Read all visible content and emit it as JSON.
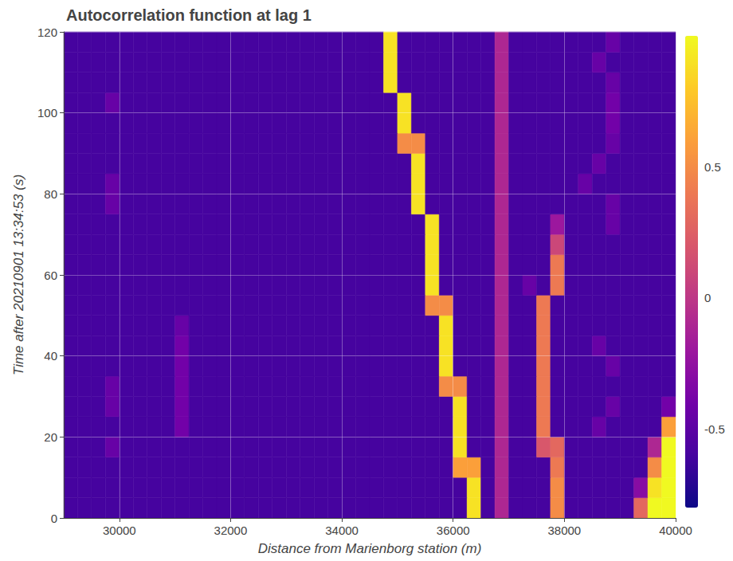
{
  "chart_data": {
    "type": "heatmap",
    "title": "Autocorrelation function at lag 1",
    "x_label": "Distance from Marienborg station (m)",
    "y_label": "Time after 20210901 13:34:53 (s)",
    "xlim": [
      29000,
      40000
    ],
    "xticks": [
      30000,
      32000,
      34000,
      36000,
      38000,
      40000
    ],
    "ylim": [
      0,
      120
    ],
    "yticks": [
      0,
      20,
      40,
      60,
      80,
      100,
      120
    ],
    "grid": true,
    "x_edges": [
      29000,
      29250,
      29500,
      29750,
      30000,
      30250,
      30500,
      30750,
      31000,
      31250,
      31500,
      31750,
      32000,
      32250,
      32500,
      32750,
      33000,
      33250,
      33500,
      33750,
      34000,
      34250,
      34500,
      34750,
      35000,
      35250,
      35500,
      35750,
      36000,
      36250,
      36500,
      36750,
      37000,
      37250,
      37500,
      37750,
      38000,
      38250,
      38500,
      38750,
      39000,
      39250,
      39500,
      39750,
      40000
    ],
    "y_edges": [
      0,
      5,
      10,
      15,
      20,
      25,
      30,
      35,
      40,
      45,
      50,
      55,
      60,
      65,
      70,
      75,
      80,
      85,
      90,
      95,
      100,
      105,
      110,
      115,
      120
    ],
    "values": [
      [
        -0.6,
        -0.6,
        -0.6,
        -0.6,
        -0.6,
        -0.6,
        -0.6,
        -0.6,
        -0.6,
        -0.6,
        -0.6,
        -0.6,
        -0.6,
        -0.6,
        -0.6,
        -0.6,
        -0.6,
        -0.6,
        -0.6,
        -0.6,
        -0.6,
        -0.6,
        -0.6,
        -0.6,
        -0.6,
        -0.6,
        -0.6,
        -0.6,
        -0.6,
        0.9,
        -0.6,
        -0.1,
        -0.6,
        -0.6,
        -0.6,
        0.5,
        -0.6,
        -0.6,
        -0.6,
        -0.6,
        -0.6,
        0.3,
        1,
        1
      ],
      [
        -0.6,
        -0.6,
        -0.6,
        -0.6,
        -0.6,
        -0.6,
        -0.6,
        -0.6,
        -0.6,
        -0.6,
        -0.6,
        -0.6,
        -0.6,
        -0.6,
        -0.6,
        -0.6,
        -0.6,
        -0.6,
        -0.6,
        -0.6,
        -0.6,
        -0.6,
        -0.6,
        -0.6,
        -0.6,
        -0.6,
        -0.6,
        -0.6,
        -0.6,
        0.9,
        -0.6,
        -0.1,
        -0.6,
        -0.6,
        -0.6,
        0.5,
        -0.6,
        -0.6,
        -0.6,
        -0.6,
        -0.6,
        -0.3,
        0.9,
        1
      ],
      [
        -0.6,
        -0.6,
        -0.6,
        -0.6,
        -0.6,
        -0.6,
        -0.6,
        -0.6,
        -0.6,
        -0.6,
        -0.6,
        -0.6,
        -0.6,
        -0.6,
        -0.6,
        -0.6,
        -0.6,
        -0.6,
        -0.6,
        -0.6,
        -0.6,
        -0.6,
        -0.6,
        -0.6,
        -0.6,
        -0.6,
        -0.6,
        -0.6,
        0.6,
        0.6,
        -0.6,
        -0.1,
        -0.6,
        -0.6,
        -0.6,
        0.4,
        -0.6,
        -0.6,
        -0.6,
        -0.6,
        -0.6,
        -0.6,
        0.5,
        1
      ],
      [
        -0.6,
        -0.6,
        -0.6,
        -0.45,
        -0.6,
        -0.6,
        -0.6,
        -0.6,
        -0.6,
        -0.6,
        -0.6,
        -0.6,
        -0.6,
        -0.6,
        -0.6,
        -0.6,
        -0.6,
        -0.6,
        -0.6,
        -0.6,
        -0.6,
        -0.6,
        -0.6,
        -0.6,
        -0.6,
        -0.6,
        -0.6,
        -0.6,
        0.9,
        -0.6,
        -0.6,
        -0.1,
        -0.6,
        -0.6,
        0.2,
        0.3,
        -0.6,
        -0.6,
        -0.6,
        -0.6,
        -0.6,
        -0.6,
        -0.1,
        1
      ],
      [
        -0.6,
        -0.6,
        -0.6,
        -0.6,
        -0.6,
        -0.6,
        -0.6,
        -0.6,
        -0.4,
        -0.6,
        -0.6,
        -0.6,
        -0.6,
        -0.6,
        -0.6,
        -0.6,
        -0.6,
        -0.6,
        -0.6,
        -0.6,
        -0.6,
        -0.6,
        -0.6,
        -0.6,
        -0.6,
        -0.6,
        -0.6,
        -0.6,
        0.9,
        -0.6,
        -0.6,
        -0.1,
        -0.6,
        -0.6,
        0.4,
        -0.6,
        -0.6,
        -0.6,
        -0.45,
        -0.6,
        -0.6,
        -0.6,
        -0.6,
        0.6
      ],
      [
        -0.6,
        -0.6,
        -0.6,
        -0.45,
        -0.6,
        -0.6,
        -0.6,
        -0.6,
        -0.4,
        -0.6,
        -0.6,
        -0.6,
        -0.6,
        -0.6,
        -0.6,
        -0.6,
        -0.6,
        -0.6,
        -0.6,
        -0.6,
        -0.6,
        -0.6,
        -0.6,
        -0.6,
        -0.6,
        -0.6,
        -0.6,
        -0.6,
        0.9,
        -0.6,
        -0.6,
        -0.1,
        -0.6,
        -0.6,
        0.4,
        -0.6,
        -0.6,
        -0.6,
        -0.6,
        -0.45,
        -0.6,
        -0.6,
        -0.6,
        -0.4
      ],
      [
        -0.6,
        -0.6,
        -0.6,
        -0.45,
        -0.6,
        -0.6,
        -0.6,
        -0.6,
        -0.4,
        -0.6,
        -0.6,
        -0.6,
        -0.6,
        -0.6,
        -0.6,
        -0.6,
        -0.6,
        -0.6,
        -0.6,
        -0.6,
        -0.6,
        -0.6,
        -0.6,
        -0.6,
        -0.6,
        -0.6,
        -0.6,
        0.5,
        0.5,
        -0.6,
        -0.6,
        -0.1,
        -0.6,
        -0.6,
        0.4,
        -0.6,
        -0.6,
        -0.6,
        -0.6,
        -0.6,
        -0.6,
        -0.6,
        -0.6,
        -0.6
      ],
      [
        -0.6,
        -0.6,
        -0.6,
        -0.6,
        -0.6,
        -0.6,
        -0.6,
        -0.6,
        -0.4,
        -0.6,
        -0.6,
        -0.6,
        -0.6,
        -0.6,
        -0.6,
        -0.6,
        -0.6,
        -0.6,
        -0.6,
        -0.6,
        -0.6,
        -0.6,
        -0.6,
        -0.6,
        -0.6,
        -0.6,
        -0.6,
        0.9,
        -0.6,
        -0.6,
        -0.6,
        -0.1,
        -0.6,
        -0.6,
        0.4,
        -0.6,
        -0.6,
        -0.6,
        -0.6,
        -0.45,
        -0.6,
        -0.6,
        -0.6,
        -0.6
      ],
      [
        -0.6,
        -0.6,
        -0.6,
        -0.6,
        -0.6,
        -0.6,
        -0.6,
        -0.6,
        -0.4,
        -0.6,
        -0.6,
        -0.6,
        -0.6,
        -0.6,
        -0.6,
        -0.6,
        -0.6,
        -0.6,
        -0.6,
        -0.6,
        -0.6,
        -0.6,
        -0.6,
        -0.6,
        -0.6,
        -0.6,
        -0.6,
        0.9,
        -0.6,
        -0.6,
        -0.6,
        -0.1,
        -0.6,
        -0.6,
        0.4,
        -0.6,
        -0.6,
        -0.6,
        -0.45,
        -0.6,
        -0.6,
        -0.6,
        -0.6,
        -0.6
      ],
      [
        -0.6,
        -0.6,
        -0.6,
        -0.6,
        -0.6,
        -0.6,
        -0.6,
        -0.6,
        -0.45,
        -0.6,
        -0.6,
        -0.6,
        -0.6,
        -0.6,
        -0.6,
        -0.6,
        -0.6,
        -0.6,
        -0.6,
        -0.6,
        -0.6,
        -0.6,
        -0.6,
        -0.6,
        -0.6,
        -0.6,
        -0.6,
        0.9,
        -0.6,
        -0.6,
        -0.6,
        -0.1,
        -0.6,
        -0.6,
        0.4,
        -0.6,
        -0.6,
        -0.6,
        -0.6,
        -0.6,
        -0.6,
        -0.6,
        -0.6,
        -0.6
      ],
      [
        -0.6,
        -0.6,
        -0.6,
        -0.6,
        -0.6,
        -0.6,
        -0.6,
        -0.6,
        -0.6,
        -0.6,
        -0.6,
        -0.6,
        -0.6,
        -0.6,
        -0.6,
        -0.6,
        -0.6,
        -0.6,
        -0.6,
        -0.6,
        -0.6,
        -0.6,
        -0.6,
        -0.6,
        -0.6,
        -0.6,
        0.5,
        0.5,
        -0.6,
        -0.6,
        -0.6,
        -0.1,
        -0.6,
        -0.6,
        0.4,
        -0.6,
        -0.6,
        -0.6,
        -0.6,
        -0.6,
        -0.6,
        -0.6,
        -0.6,
        -0.6
      ],
      [
        -0.6,
        -0.6,
        -0.6,
        -0.6,
        -0.6,
        -0.6,
        -0.6,
        -0.6,
        -0.6,
        -0.6,
        -0.6,
        -0.6,
        -0.6,
        -0.6,
        -0.6,
        -0.6,
        -0.6,
        -0.6,
        -0.6,
        -0.6,
        -0.6,
        -0.6,
        -0.6,
        -0.6,
        -0.6,
        -0.6,
        0.9,
        -0.6,
        -0.6,
        -0.6,
        -0.6,
        -0.1,
        -0.6,
        -0.45,
        -0.6,
        0.4,
        -0.6,
        -0.6,
        -0.6,
        -0.6,
        -0.6,
        -0.6,
        -0.6,
        -0.6
      ],
      [
        -0.6,
        -0.6,
        -0.6,
        -0.6,
        -0.6,
        -0.6,
        -0.6,
        -0.6,
        -0.6,
        -0.6,
        -0.6,
        -0.6,
        -0.6,
        -0.6,
        -0.6,
        -0.6,
        -0.6,
        -0.6,
        -0.6,
        -0.6,
        -0.6,
        -0.6,
        -0.6,
        -0.6,
        -0.6,
        -0.6,
        0.9,
        -0.6,
        -0.6,
        -0.6,
        -0.6,
        -0.1,
        -0.6,
        -0.6,
        -0.6,
        0.4,
        -0.6,
        -0.6,
        -0.6,
        -0.6,
        -0.6,
        -0.6,
        -0.6,
        -0.6
      ],
      [
        -0.6,
        -0.6,
        -0.6,
        -0.6,
        -0.6,
        -0.6,
        -0.6,
        -0.6,
        -0.6,
        -0.6,
        -0.6,
        -0.6,
        -0.6,
        -0.6,
        -0.6,
        -0.6,
        -0.6,
        -0.6,
        -0.6,
        -0.6,
        -0.6,
        -0.6,
        -0.6,
        -0.6,
        -0.6,
        -0.6,
        0.9,
        -0.6,
        -0.6,
        -0.6,
        -0.6,
        -0.1,
        -0.6,
        -0.6,
        -0.6,
        0.1,
        -0.6,
        -0.6,
        -0.6,
        -0.6,
        -0.6,
        -0.6,
        -0.6,
        -0.6
      ],
      [
        -0.6,
        -0.6,
        -0.6,
        -0.6,
        -0.6,
        -0.6,
        -0.6,
        -0.6,
        -0.6,
        -0.6,
        -0.6,
        -0.6,
        -0.6,
        -0.6,
        -0.6,
        -0.6,
        -0.6,
        -0.6,
        -0.6,
        -0.6,
        -0.6,
        -0.6,
        -0.6,
        -0.6,
        -0.6,
        -0.6,
        0.9,
        -0.6,
        -0.6,
        -0.6,
        -0.6,
        -0.1,
        -0.6,
        -0.6,
        -0.6,
        -0.2,
        -0.6,
        -0.6,
        -0.6,
        -0.45,
        -0.6,
        -0.6,
        -0.6,
        -0.6
      ],
      [
        -0.6,
        -0.6,
        -0.6,
        -0.45,
        -0.6,
        -0.6,
        -0.6,
        -0.6,
        -0.6,
        -0.6,
        -0.6,
        -0.6,
        -0.6,
        -0.6,
        -0.6,
        -0.6,
        -0.6,
        -0.6,
        -0.6,
        -0.6,
        -0.6,
        -0.6,
        -0.6,
        -0.6,
        -0.6,
        0.9,
        -0.6,
        -0.6,
        -0.6,
        -0.6,
        -0.6,
        -0.1,
        -0.6,
        -0.6,
        -0.6,
        -0.6,
        -0.6,
        -0.6,
        -0.6,
        -0.45,
        -0.6,
        -0.6,
        -0.6,
        -0.6
      ],
      [
        -0.6,
        -0.6,
        -0.6,
        -0.45,
        -0.6,
        -0.6,
        -0.6,
        -0.6,
        -0.6,
        -0.6,
        -0.6,
        -0.6,
        -0.6,
        -0.6,
        -0.6,
        -0.6,
        -0.6,
        -0.6,
        -0.6,
        -0.6,
        -0.6,
        -0.6,
        -0.6,
        -0.6,
        -0.6,
        0.9,
        -0.6,
        -0.6,
        -0.6,
        -0.6,
        -0.6,
        -0.1,
        -0.6,
        -0.6,
        -0.6,
        -0.6,
        -0.6,
        -0.45,
        -0.6,
        -0.6,
        -0.6,
        -0.6,
        -0.6,
        -0.6
      ],
      [
        -0.6,
        -0.6,
        -0.6,
        -0.6,
        -0.6,
        -0.6,
        -0.6,
        -0.6,
        -0.6,
        -0.6,
        -0.6,
        -0.6,
        -0.6,
        -0.6,
        -0.6,
        -0.6,
        -0.6,
        -0.6,
        -0.6,
        -0.6,
        -0.6,
        -0.6,
        -0.6,
        -0.6,
        -0.6,
        0.9,
        -0.6,
        -0.6,
        -0.6,
        -0.6,
        -0.6,
        -0.1,
        -0.6,
        -0.6,
        -0.6,
        -0.6,
        -0.6,
        -0.6,
        -0.45,
        -0.6,
        -0.6,
        -0.6,
        -0.6,
        -0.6
      ],
      [
        -0.6,
        -0.6,
        -0.6,
        -0.6,
        -0.6,
        -0.6,
        -0.6,
        -0.6,
        -0.6,
        -0.6,
        -0.6,
        -0.6,
        -0.6,
        -0.6,
        -0.6,
        -0.6,
        -0.6,
        -0.6,
        -0.6,
        -0.6,
        -0.6,
        -0.6,
        -0.6,
        -0.6,
        0.5,
        0.5,
        -0.6,
        -0.6,
        -0.6,
        -0.6,
        -0.6,
        -0.1,
        -0.6,
        -0.6,
        -0.6,
        -0.6,
        -0.6,
        -0.6,
        -0.6,
        -0.45,
        -0.6,
        -0.6,
        -0.6,
        -0.6
      ],
      [
        -0.6,
        -0.6,
        -0.6,
        -0.6,
        -0.6,
        -0.6,
        -0.6,
        -0.6,
        -0.6,
        -0.6,
        -0.6,
        -0.6,
        -0.6,
        -0.6,
        -0.6,
        -0.6,
        -0.6,
        -0.6,
        -0.6,
        -0.6,
        -0.6,
        -0.6,
        -0.6,
        -0.6,
        0.9,
        -0.6,
        -0.6,
        -0.6,
        -0.6,
        -0.6,
        -0.6,
        -0.1,
        -0.6,
        -0.6,
        -0.6,
        -0.6,
        -0.6,
        -0.6,
        -0.6,
        -0.4,
        -0.6,
        -0.6,
        -0.6,
        -0.6
      ],
      [
        -0.6,
        -0.6,
        -0.6,
        -0.45,
        -0.6,
        -0.6,
        -0.6,
        -0.6,
        -0.6,
        -0.6,
        -0.6,
        -0.6,
        -0.6,
        -0.6,
        -0.6,
        -0.6,
        -0.6,
        -0.6,
        -0.6,
        -0.6,
        -0.6,
        -0.6,
        -0.6,
        -0.6,
        0.9,
        -0.6,
        -0.6,
        -0.6,
        -0.6,
        -0.6,
        -0.6,
        -0.1,
        -0.6,
        -0.6,
        -0.6,
        -0.6,
        -0.6,
        -0.6,
        -0.6,
        -0.4,
        -0.6,
        -0.6,
        -0.6,
        -0.6
      ],
      [
        -0.6,
        -0.6,
        -0.6,
        -0.6,
        -0.6,
        -0.6,
        -0.6,
        -0.6,
        -0.6,
        -0.6,
        -0.6,
        -0.6,
        -0.6,
        -0.6,
        -0.6,
        -0.6,
        -0.6,
        -0.6,
        -0.6,
        -0.6,
        -0.6,
        -0.6,
        -0.6,
        0.9,
        -0.6,
        -0.6,
        -0.6,
        -0.6,
        -0.6,
        -0.6,
        -0.6,
        -0.1,
        -0.6,
        -0.6,
        -0.6,
        -0.6,
        -0.6,
        -0.6,
        -0.6,
        -0.45,
        -0.6,
        -0.6,
        -0.6,
        -0.6
      ],
      [
        -0.6,
        -0.6,
        -0.6,
        -0.6,
        -0.6,
        -0.6,
        -0.6,
        -0.6,
        -0.6,
        -0.6,
        -0.6,
        -0.6,
        -0.6,
        -0.6,
        -0.6,
        -0.6,
        -0.6,
        -0.6,
        -0.6,
        -0.6,
        -0.6,
        -0.6,
        -0.6,
        0.9,
        -0.6,
        -0.6,
        -0.6,
        -0.6,
        -0.6,
        -0.6,
        -0.6,
        -0.1,
        -0.6,
        -0.6,
        -0.6,
        -0.6,
        -0.6,
        -0.6,
        -0.45,
        -0.6,
        -0.6,
        -0.6,
        -0.6,
        -0.6
      ],
      [
        -0.6,
        -0.6,
        -0.6,
        -0.6,
        -0.6,
        -0.6,
        -0.6,
        -0.6,
        -0.6,
        -0.6,
        -0.6,
        -0.6,
        -0.6,
        -0.6,
        -0.6,
        -0.6,
        -0.6,
        -0.6,
        -0.6,
        -0.6,
        -0.6,
        -0.6,
        -0.6,
        0.9,
        -0.6,
        -0.6,
        -0.6,
        -0.6,
        -0.6,
        -0.6,
        -0.6,
        -0.1,
        -0.6,
        -0.6,
        -0.6,
        -0.6,
        -0.6,
        -0.6,
        -0.6,
        -0.45,
        -0.6,
        -0.6,
        -0.6,
        -0.6
      ]
    ],
    "colorbar": {
      "range": [
        -0.8,
        1
      ],
      "ticks": [
        -0.5,
        0,
        0.5
      ]
    }
  }
}
